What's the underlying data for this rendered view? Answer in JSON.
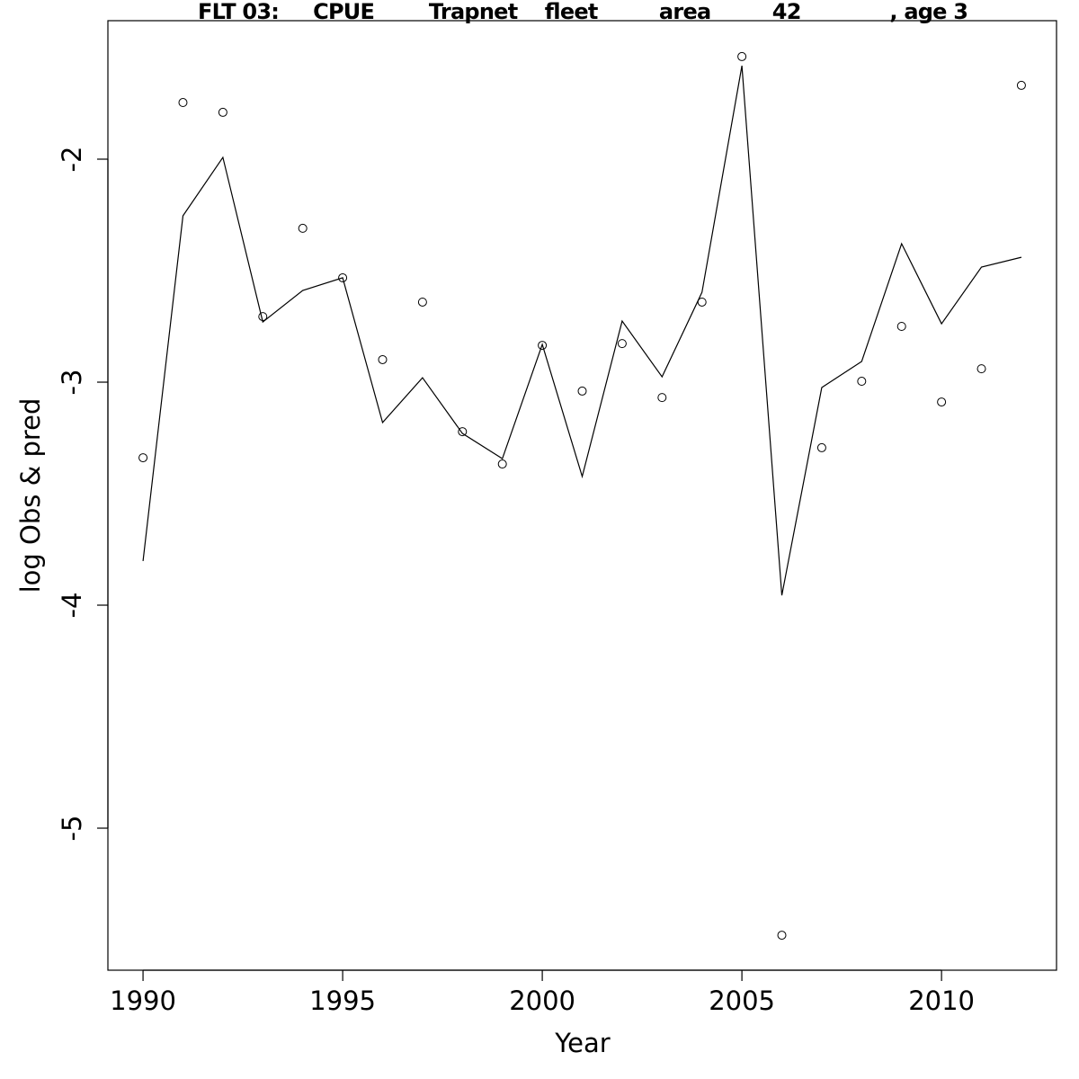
{
  "chart_data": {
    "type": "line",
    "title": "FLT 03:     CPUE        Trapnet    fleet         area         42             , age 3",
    "xlabel": "Year",
    "ylabel": "log Obs & pred",
    "x": [
      1990,
      1991,
      1992,
      1993,
      1994,
      1995,
      1996,
      1997,
      1998,
      1999,
      2000,
      2001,
      2002,
      2003,
      2004,
      2005,
      2006,
      2007,
      2008,
      2009,
      2010,
      2011,
      2012
    ],
    "series": [
      {
        "style": "points",
        "color": "#000000",
        "values": [
          -3.339,
          -1.746,
          -1.79,
          -2.706,
          -2.31,
          -2.532,
          -2.899,
          -2.641,
          -3.222,
          -3.367,
          -2.835,
          -3.04,
          -2.827,
          -3.069,
          -2.641,
          -1.54,
          -5.48,
          -3.294,
          -2.996,
          -2.75,
          -3.089,
          -2.94,
          -1.669
        ]
      },
      {
        "style": "line",
        "color": "#000000",
        "values": [
          -3.802,
          -2.254,
          -1.992,
          -2.73,
          -2.589,
          -2.532,
          -3.181,
          -2.98,
          -3.23,
          -3.343,
          -2.831,
          -3.423,
          -2.726,
          -2.976,
          -2.597,
          -1.581,
          -3.956,
          -3.024,
          -2.907,
          -2.379,
          -2.738,
          -2.484,
          -2.44
        ]
      }
    ],
    "xlim": [
      1989.12,
      2012.88
    ],
    "xticks": [
      1990,
      1995,
      2000,
      2005,
      2010
    ],
    "ylim": [
      -5.637,
      -1.379
    ],
    "yticks": [
      -2,
      -3,
      -4,
      -5
    ]
  }
}
